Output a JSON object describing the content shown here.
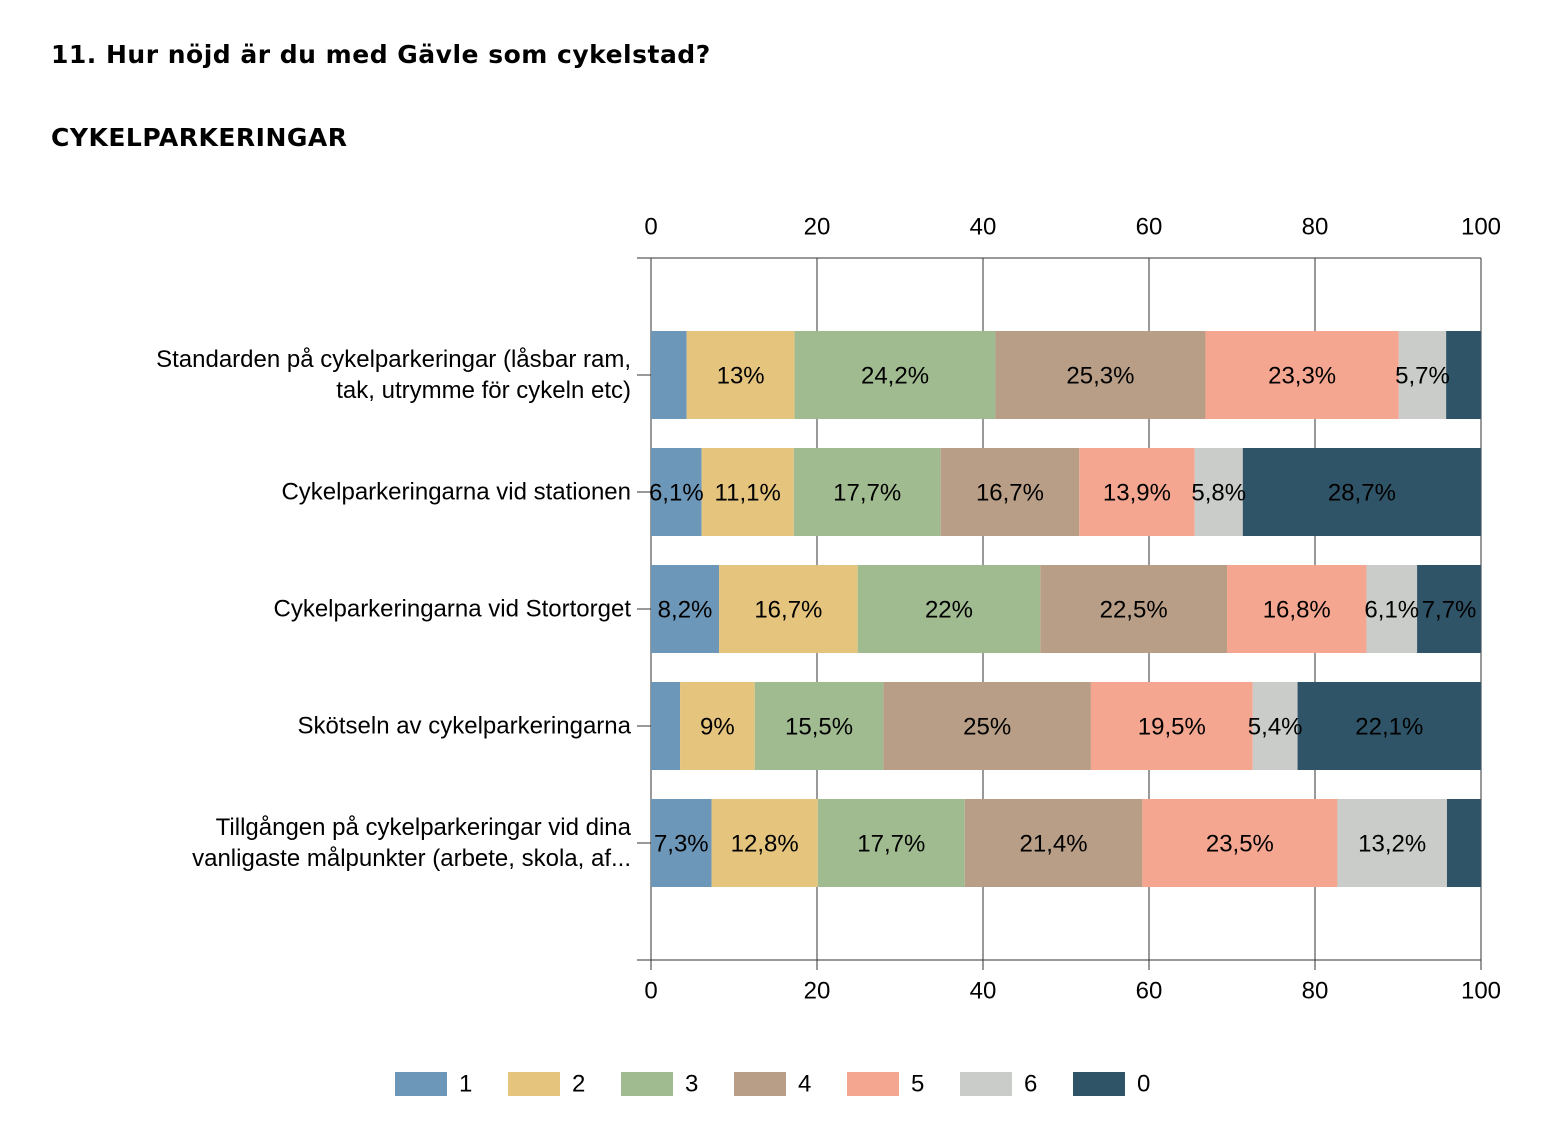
{
  "chart_data": {
    "type": "stacked-bar-horizontal",
    "title": "11. Hur nöjd är du med Gävle som cykelstad?",
    "subtitle": "CYKELPARKERINGAR",
    "categories": [
      "Standarden på cykelparkeringar (låsbar ram, tak, utrymme för cykeln etc)",
      "Cykelparkeringarna vid stationen",
      "Cykelparkeringarna vid Stortorget",
      "Skötseln av cykelparkeringarna",
      "Tillgången på cykelparkeringar vid dina vanligaste målpunkter (arbete, skola, af..."
    ],
    "series": [
      {
        "name": "1",
        "color": "#6d97b8",
        "values": [
          4.3,
          6.1,
          8.2,
          3.5,
          7.3
        ],
        "value_labels": [
          null,
          "6,1%",
          "8,2%",
          null,
          "7,3%"
        ]
      },
      {
        "name": "2",
        "color": "#e5c47e",
        "values": [
          13,
          11.1,
          16.7,
          9,
          12.8
        ],
        "value_labels": [
          "13%",
          "11,1%",
          "16,7%",
          "9%",
          "12,8%"
        ]
      },
      {
        "name": "3",
        "color": "#a0bb90",
        "values": [
          24.2,
          17.7,
          22,
          15.5,
          17.7
        ],
        "value_labels": [
          "24,2%",
          "17,7%",
          "22%",
          "15,5%",
          "17,7%"
        ]
      },
      {
        "name": "4",
        "color": "#b89e86",
        "values": [
          25.3,
          16.7,
          22.5,
          25,
          21.4
        ],
        "value_labels": [
          "25,3%",
          "16,7%",
          "22,5%",
          "25%",
          "21,4%"
        ]
      },
      {
        "name": "5",
        "color": "#f5a690",
        "values": [
          23.3,
          13.9,
          16.8,
          19.5,
          23.5
        ],
        "value_labels": [
          "23,3%",
          "13,9%",
          "16,8%",
          "19,5%",
          "23,5%"
        ]
      },
      {
        "name": "6",
        "color": "#c9ccc9",
        "values": [
          5.7,
          5.8,
          6.1,
          5.4,
          13.2
        ],
        "value_labels": [
          "5,7%",
          "5,8%",
          "6,1%",
          "5,4%",
          "13,2%"
        ]
      },
      {
        "name": "0",
        "color": "#2f5468",
        "values": [
          4.2,
          28.7,
          7.7,
          22.1,
          4.1
        ],
        "value_labels": [
          null,
          "28,7%",
          "7,7%",
          "22,1%",
          null
        ]
      }
    ],
    "xlim": [
      0,
      100
    ],
    "xticks": [
      0,
      20,
      40,
      60,
      80,
      100
    ],
    "grid": true,
    "legend": "bottom"
  }
}
